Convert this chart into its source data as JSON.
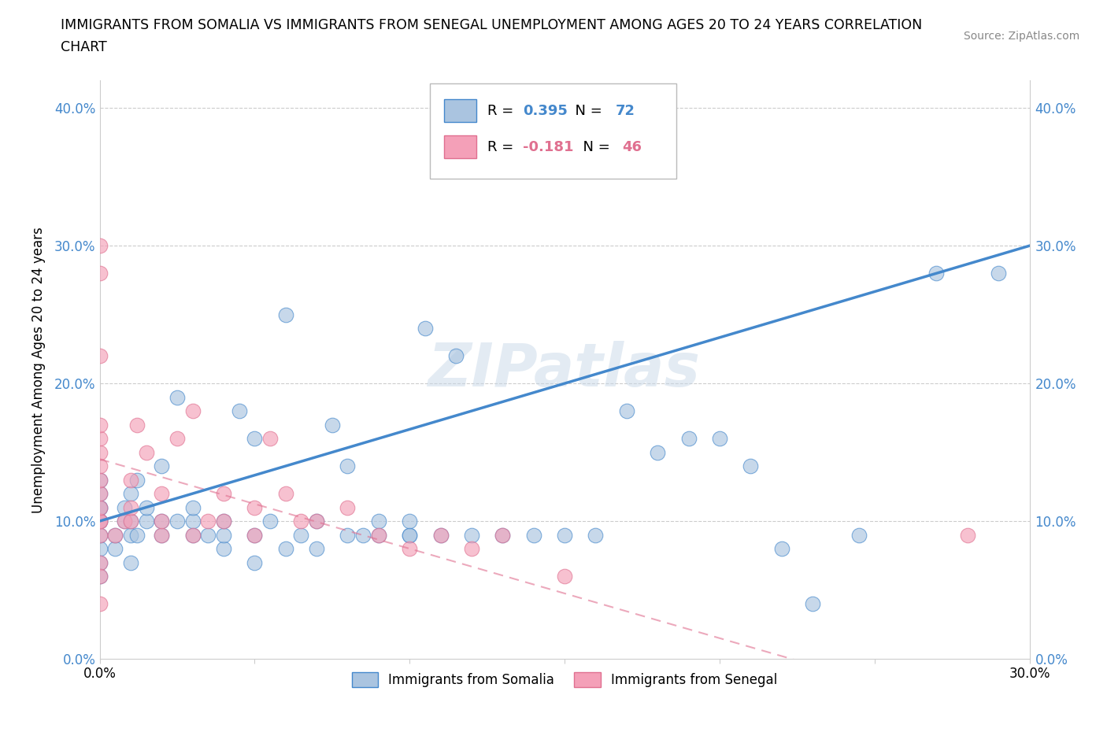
{
  "title_line1": "IMMIGRANTS FROM SOMALIA VS IMMIGRANTS FROM SENEGAL UNEMPLOYMENT AMONG AGES 20 TO 24 YEARS CORRELATION",
  "title_line2": "CHART",
  "source_text": "Source: ZipAtlas.com",
  "ylabel": "Unemployment Among Ages 20 to 24 years",
  "xlim": [
    0.0,
    0.3
  ],
  "ylim": [
    0.0,
    0.42
  ],
  "yticks": [
    0.0,
    0.1,
    0.2,
    0.3,
    0.4
  ],
  "xticks": [
    0.0,
    0.05,
    0.1,
    0.15,
    0.2,
    0.25,
    0.3
  ],
  "xtick_labels": [
    "0.0%",
    "",
    "",
    "",
    "",
    "",
    "30.0%"
  ],
  "somalia_R": 0.395,
  "somalia_N": 72,
  "senegal_R": -0.181,
  "senegal_N": 46,
  "somalia_color": "#aac4e0",
  "senegal_color": "#f4a0b8",
  "somalia_line_color": "#4488cc",
  "senegal_line_color": "#e07090",
  "watermark": "ZIPatlas",
  "somalia_x": [
    0.0,
    0.0,
    0.0,
    0.0,
    0.0,
    0.0,
    0.0,
    0.0,
    0.0,
    0.0,
    0.005,
    0.005,
    0.008,
    0.008,
    0.01,
    0.01,
    0.01,
    0.01,
    0.012,
    0.012,
    0.015,
    0.015,
    0.02,
    0.02,
    0.02,
    0.025,
    0.025,
    0.03,
    0.03,
    0.03,
    0.035,
    0.04,
    0.04,
    0.04,
    0.045,
    0.05,
    0.05,
    0.05,
    0.055,
    0.06,
    0.06,
    0.065,
    0.07,
    0.07,
    0.075,
    0.08,
    0.08,
    0.085,
    0.09,
    0.09,
    0.1,
    0.1,
    0.1,
    0.105,
    0.11,
    0.115,
    0.12,
    0.13,
    0.14,
    0.15,
    0.15,
    0.16,
    0.17,
    0.18,
    0.19,
    0.2,
    0.21,
    0.22,
    0.23,
    0.245,
    0.27,
    0.29
  ],
  "somalia_y": [
    0.08,
    0.09,
    0.1,
    0.1,
    0.11,
    0.11,
    0.12,
    0.13,
    0.07,
    0.06,
    0.08,
    0.09,
    0.1,
    0.11,
    0.09,
    0.1,
    0.12,
    0.07,
    0.09,
    0.13,
    0.1,
    0.11,
    0.09,
    0.1,
    0.14,
    0.1,
    0.19,
    0.09,
    0.1,
    0.11,
    0.09,
    0.08,
    0.09,
    0.1,
    0.18,
    0.07,
    0.09,
    0.16,
    0.1,
    0.08,
    0.25,
    0.09,
    0.08,
    0.1,
    0.17,
    0.09,
    0.14,
    0.09,
    0.09,
    0.1,
    0.09,
    0.09,
    0.1,
    0.24,
    0.09,
    0.22,
    0.09,
    0.09,
    0.09,
    0.09,
    0.36,
    0.09,
    0.18,
    0.15,
    0.16,
    0.16,
    0.14,
    0.08,
    0.04,
    0.09,
    0.28,
    0.28
  ],
  "senegal_x": [
    0.0,
    0.0,
    0.0,
    0.0,
    0.0,
    0.0,
    0.0,
    0.0,
    0.0,
    0.0,
    0.0,
    0.0,
    0.005,
    0.008,
    0.01,
    0.01,
    0.01,
    0.012,
    0.015,
    0.02,
    0.02,
    0.02,
    0.025,
    0.03,
    0.03,
    0.035,
    0.04,
    0.04,
    0.05,
    0.05,
    0.055,
    0.06,
    0.065,
    0.07,
    0.08,
    0.09,
    0.1,
    0.11,
    0.12,
    0.13,
    0.15,
    0.28,
    0.0,
    0.0,
    0.0,
    0.0
  ],
  "senegal_y": [
    0.09,
    0.1,
    0.1,
    0.11,
    0.12,
    0.13,
    0.14,
    0.15,
    0.16,
    0.17,
    0.22,
    0.3,
    0.09,
    0.1,
    0.1,
    0.11,
    0.13,
    0.17,
    0.15,
    0.09,
    0.1,
    0.12,
    0.16,
    0.09,
    0.18,
    0.1,
    0.1,
    0.12,
    0.09,
    0.11,
    0.16,
    0.12,
    0.1,
    0.1,
    0.11,
    0.09,
    0.08,
    0.09,
    0.08,
    0.09,
    0.06,
    0.09,
    0.28,
    0.07,
    0.06,
    0.04
  ]
}
